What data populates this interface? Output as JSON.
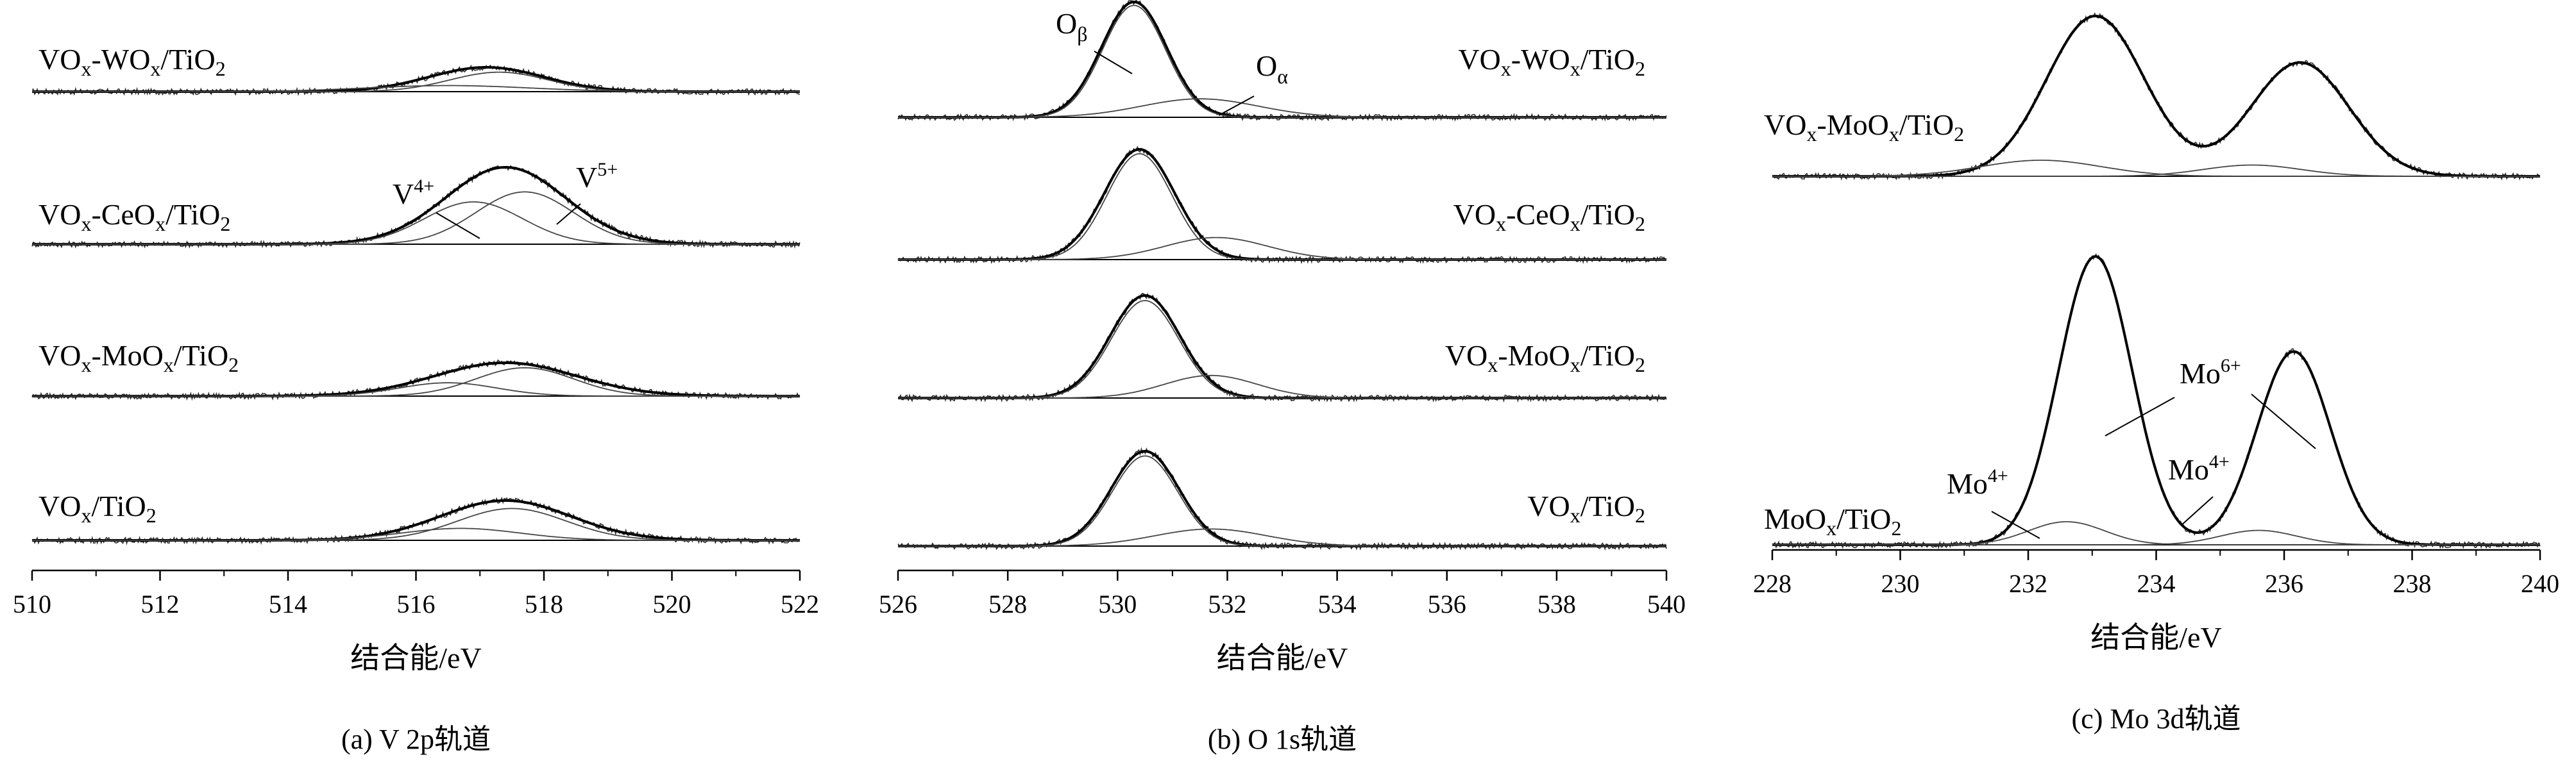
{
  "chart_data": [
    {
      "type": "line",
      "caption": "(a) V 2p轨道",
      "xlabel": "结合能/eV",
      "xlim": [
        510,
        522
      ],
      "xticks": [
        510,
        512,
        514,
        516,
        518,
        520,
        522
      ],
      "ylabel": "",
      "grid": false,
      "series": [
        {
          "name": "VOx-WOx/TiO2",
          "label_parts": [
            "VO",
            "x",
            "-WO",
            "x",
            "/TiO",
            "2"
          ],
          "envelope": {
            "center": 517.1,
            "height": 1.0,
            "fwhm": 2.1
          },
          "components": [
            {
              "center": 516.5,
              "height": 0.25,
              "fwhm": 3.0
            },
            {
              "center": 517.3,
              "height": 0.8,
              "fwhm": 1.8
            }
          ]
        },
        {
          "name": "VOx-CeOx/TiO2",
          "label_parts": [
            "VO",
            "x",
            "-CeO",
            "x",
            "/TiO",
            "2"
          ],
          "envelope": {
            "center": 517.4,
            "height": 1.0,
            "fwhm": 2.2
          },
          "components": [
            {
              "center": 516.9,
              "height": 0.55,
              "fwhm": 1.8
            },
            {
              "center": 517.7,
              "height": 0.68,
              "fwhm": 1.8
            }
          ]
        },
        {
          "name": "VOx-MoOx/TiO2",
          "label_parts": [
            "VO",
            "x",
            "-MoO",
            "x",
            "/TiO",
            "2"
          ],
          "envelope": {
            "center": 517.4,
            "height": 1.0,
            "fwhm": 2.6
          },
          "components": [
            {
              "center": 516.5,
              "height": 0.4,
              "fwhm": 1.8
            },
            {
              "center": 517.7,
              "height": 0.85,
              "fwhm": 1.8
            }
          ]
        },
        {
          "name": "VOx/TiO2",
          "label_parts": [
            "VO",
            "x",
            "/TiO",
            "2"
          ],
          "envelope": {
            "center": 517.4,
            "height": 1.0,
            "fwhm": 2.4
          },
          "components": [
            {
              "center": 516.7,
              "height": 0.3,
              "fwhm": 2.2
            },
            {
              "center": 517.5,
              "height": 0.8,
              "fwhm": 2.0
            }
          ]
        }
      ],
      "annotations": [
        {
          "text": "V",
          "sup": "4+"
        },
        {
          "text": "V",
          "sup": "5+"
        }
      ]
    },
    {
      "type": "line",
      "caption": "(b) O 1s轨道",
      "xlabel": "结合能/eV",
      "xlim": [
        526,
        540
      ],
      "xticks": [
        526,
        528,
        530,
        532,
        534,
        536,
        538,
        540
      ],
      "ylabel": "",
      "grid": false,
      "series": [
        {
          "name": "VOx-WOx/TiO2",
          "label_parts": [
            "VO",
            "x",
            "-WO",
            "x",
            "/TiO",
            "2"
          ],
          "envelope": {
            "center": 530.3,
            "height": 1.0,
            "fwhm": 1.4
          },
          "components": [
            {
              "center": 530.3,
              "height": 0.97,
              "fwhm": 1.35
            },
            {
              "center": 531.5,
              "height": 0.16,
              "fwhm": 2.5
            }
          ]
        },
        {
          "name": "VOx-CeOx/TiO2",
          "label_parts": [
            "VO",
            "x",
            "-CeO",
            "x",
            "/TiO",
            "2"
          ],
          "envelope": {
            "center": 530.4,
            "height": 1.0,
            "fwhm": 1.5
          },
          "components": [
            {
              "center": 530.4,
              "height": 0.96,
              "fwhm": 1.4
            },
            {
              "center": 531.8,
              "height": 0.2,
              "fwhm": 2.2
            }
          ]
        },
        {
          "name": "VOx-MoOx/TiO2",
          "label_parts": [
            "VO",
            "x",
            "-MoO",
            "x",
            "/TiO",
            "2"
          ],
          "envelope": {
            "center": 530.5,
            "height": 1.0,
            "fwhm": 1.5
          },
          "components": [
            {
              "center": 530.5,
              "height": 0.95,
              "fwhm": 1.45
            },
            {
              "center": 531.7,
              "height": 0.22,
              "fwhm": 2.0
            }
          ]
        },
        {
          "name": "VOx/TiO2",
          "label_parts": [
            "VO",
            "x",
            "/TiO",
            "2"
          ],
          "envelope": {
            "center": 530.5,
            "height": 1.0,
            "fwhm": 1.45
          },
          "components": [
            {
              "center": 530.5,
              "height": 0.95,
              "fwhm": 1.4
            },
            {
              "center": 531.7,
              "height": 0.18,
              "fwhm": 2.4
            }
          ]
        }
      ],
      "annotations": [
        {
          "text": "O",
          "sub": "β"
        },
        {
          "text": "O",
          "sub": "α"
        }
      ]
    },
    {
      "type": "line",
      "caption": "(c) Mo 3d轨道",
      "xlabel": "结合能/eV",
      "xlim": [
        228,
        240
      ],
      "xticks": [
        228,
        230,
        232,
        234,
        236,
        238,
        240
      ],
      "ylabel": "",
      "grid": false,
      "series": [
        {
          "name": "VOx-MoOx/TiO2",
          "label_parts": [
            "VO",
            "x",
            "-MoO",
            "x",
            "/TiO",
            "2"
          ],
          "envelope": {
            "center": 233.05,
            "height": 1.0,
            "fwhm": 1.8
          },
          "peaks": [
            {
              "center": 233.05,
              "height": 1.0,
              "fwhm": 1.8
            },
            {
              "center": 236.25,
              "height": 0.71,
              "fwhm": 1.8
            }
          ],
          "components": [
            {
              "center": 232.2,
              "height": 0.1,
              "fwhm": 2.2
            },
            {
              "center": 235.5,
              "height": 0.07,
              "fwhm": 1.8
            }
          ]
        },
        {
          "name": "MoOx/TiO2",
          "label_parts": [
            "MoO",
            "x",
            "/TiO",
            "2"
          ],
          "envelope": {
            "center": 233.05,
            "height": 1.0,
            "fwhm": 1.35
          },
          "peaks": [
            {
              "center": 233.05,
              "height": 1.0,
              "fwhm": 1.35
            },
            {
              "center": 236.15,
              "height": 0.67,
              "fwhm": 1.35
            }
          ],
          "components": [
            {
              "center": 232.6,
              "height": 0.08,
              "fwhm": 1.4
            },
            {
              "center": 235.6,
              "height": 0.05,
              "fwhm": 1.4
            }
          ]
        }
      ],
      "annotations": [
        {
          "text": "Mo",
          "sup": "6+"
        },
        {
          "text": "Mo",
          "sup": "4+"
        },
        {
          "text": "Mo",
          "sup": "4+"
        }
      ]
    }
  ]
}
